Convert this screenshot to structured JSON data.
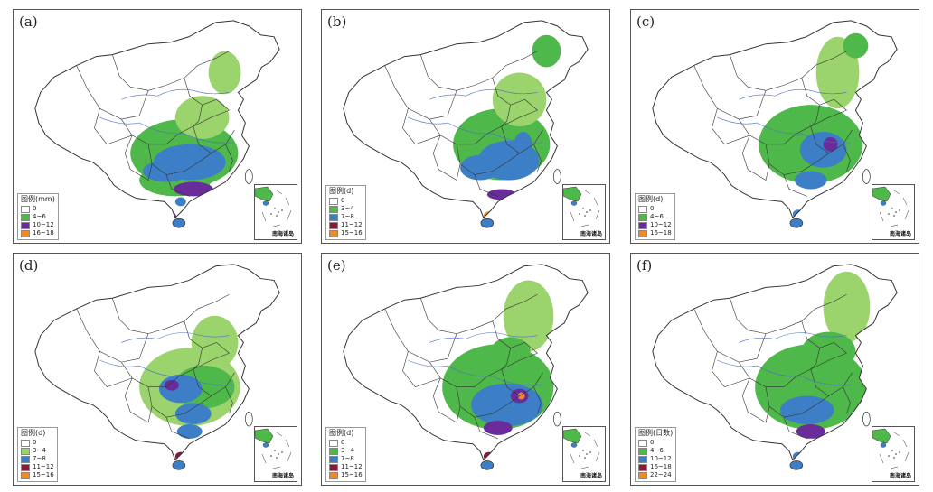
{
  "colors": {
    "c0": "#ffffff",
    "green_light": "#9bd36c",
    "green": "#4fb84a",
    "blue": "#3d7fc6",
    "purple": "#6a2c9a",
    "darkred": "#8b1a3a",
    "orange": "#f08a24",
    "black": "#1a1a1a",
    "boundary": "#333333",
    "river": "#4d6fc2"
  },
  "inset_caption": "南海诸岛",
  "panels": [
    {
      "label": "(a)",
      "legend_title": "图例(mm)",
      "legend": [
        {
          "text": "0",
          "color": "#ffffff"
        },
        {
          "text": "4~6",
          "color": "#4fb84a"
        },
        {
          "text": "10~12",
          "color": "#6a2c9a"
        },
        {
          "text": "16~18",
          "color": "#f08a24"
        }
      ]
    },
    {
      "label": "(b)",
      "legend_title": "图例(d)",
      "legend": [
        {
          "text": "0",
          "color": "#ffffff"
        },
        {
          "text": "3~4",
          "color": "#4fb84a"
        },
        {
          "text": "7~8",
          "color": "#3d7fc6"
        },
        {
          "text": "11~12",
          "color": "#8b1a3a"
        },
        {
          "text": "15~16",
          "color": "#f08a24"
        }
      ]
    },
    {
      "label": "(c)",
      "legend_title": "图例(d)",
      "legend": [
        {
          "text": "0",
          "color": "#ffffff"
        },
        {
          "text": "4~6",
          "color": "#4fb84a"
        },
        {
          "text": "10~12",
          "color": "#6a2c9a"
        },
        {
          "text": "16~18",
          "color": "#f08a24"
        }
      ]
    },
    {
      "label": "(d)",
      "legend_title": "图例(d)",
      "legend": [
        {
          "text": "0",
          "color": "#ffffff"
        },
        {
          "text": "3~4",
          "color": "#9bd36c"
        },
        {
          "text": "7~8",
          "color": "#3d7fc6"
        },
        {
          "text": "11~12",
          "color": "#8b1a3a"
        },
        {
          "text": "15~16",
          "color": "#f08a24"
        }
      ]
    },
    {
      "label": "(e)",
      "legend_title": "图例(d)",
      "legend": [
        {
          "text": "0",
          "color": "#ffffff"
        },
        {
          "text": "3~4",
          "color": "#4fb84a"
        },
        {
          "text": "7~8",
          "color": "#3d7fc6"
        },
        {
          "text": "11~12",
          "color": "#8b1a3a"
        },
        {
          "text": "15~16",
          "color": "#f08a24"
        }
      ]
    },
    {
      "label": "(f)",
      "legend_title": "图例(日数)",
      "legend": [
        {
          "text": "0",
          "color": "#ffffff"
        },
        {
          "text": "4~6",
          "color": "#4fb84a"
        },
        {
          "text": "10~12",
          "color": "#3d7fc6"
        },
        {
          "text": "16~18",
          "color": "#8b1a3a"
        },
        {
          "text": "22~24",
          "color": "#f08a24"
        }
      ]
    }
  ]
}
